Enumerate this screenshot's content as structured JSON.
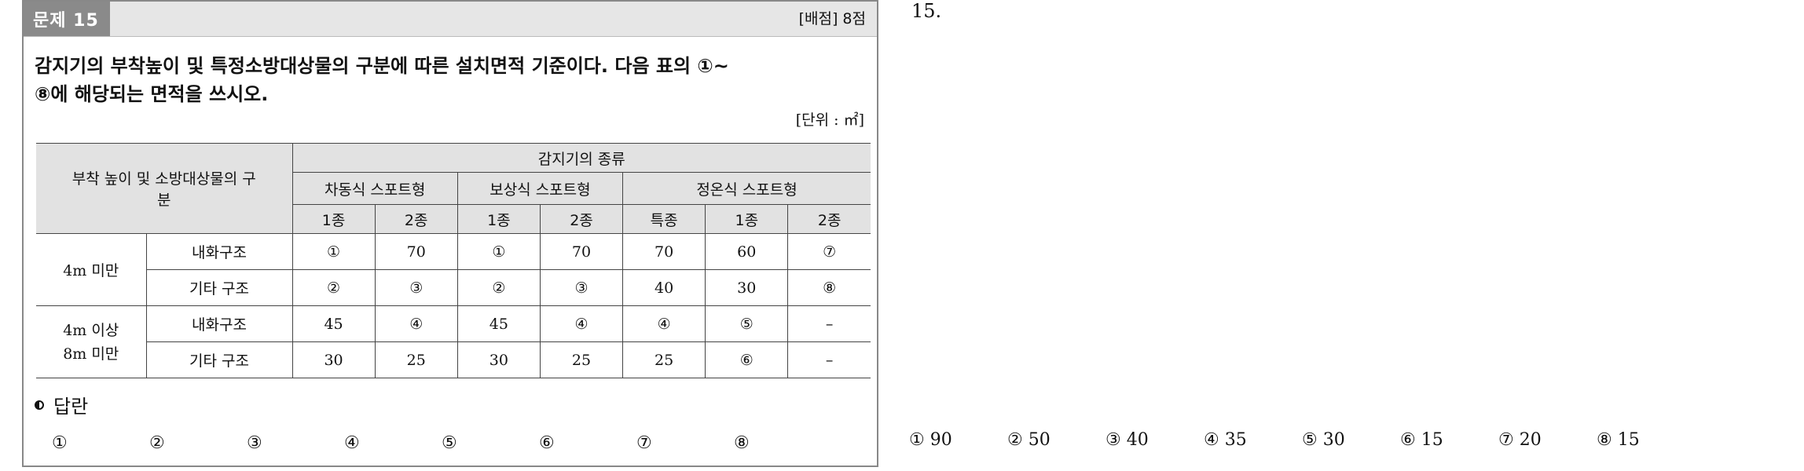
{
  "problem": {
    "label": "문제 15",
    "score": "[배점] 8점",
    "question_line1": "감지기의 부착높이 및 특정소방대상물의 구분에 따른 설치면적 기준이다. 다음 표의 ①~",
    "question_line2": "⑧에 해당되는 면적을 쓰시오.",
    "unit": "[단위 : ㎡]"
  },
  "table": {
    "corner_header": "부착 높이 및 소방대상물의 구분",
    "top_header": "감지기의 종류",
    "groups": [
      "차동식 스포트형",
      "보상식 스포트형",
      "정온식 스포트형"
    ],
    "sub_headers": [
      "1종",
      "2종",
      "1종",
      "2종",
      "특종",
      "1종",
      "2종"
    ],
    "rows": [
      {
        "height": "4m 미만",
        "struct": "내화구조",
        "cells": [
          "①",
          "70",
          "①",
          "70",
          "70",
          "60",
          "⑦"
        ]
      },
      {
        "height": "",
        "struct": "기타 구조",
        "cells": [
          "②",
          "③",
          "②",
          "③",
          "40",
          "30",
          "⑧"
        ]
      },
      {
        "height": "4m 이상 8m 미만",
        "struct": "내화구조",
        "cells": [
          "45",
          "④",
          "45",
          "④",
          "④",
          "⑤",
          "–"
        ]
      },
      {
        "height": "",
        "struct": "기타 구조",
        "cells": [
          "30",
          "25",
          "30",
          "25",
          "25",
          "⑥",
          "–"
        ]
      }
    ],
    "height_group_1": "4m 미만",
    "height_group_2_line1": "4m 이상",
    "height_group_2_line2": "8m 미만"
  },
  "answer_sheet": {
    "title": "답란",
    "slots": [
      "①",
      "②",
      "③",
      "④",
      "⑤",
      "⑥",
      "⑦",
      "⑧"
    ]
  },
  "solution": {
    "number": "15.",
    "answers": [
      "① 90",
      "② 50",
      "③ 40",
      "④ 35",
      "⑤ 30",
      "⑥ 15",
      "⑦ 20",
      "⑧ 15"
    ]
  }
}
